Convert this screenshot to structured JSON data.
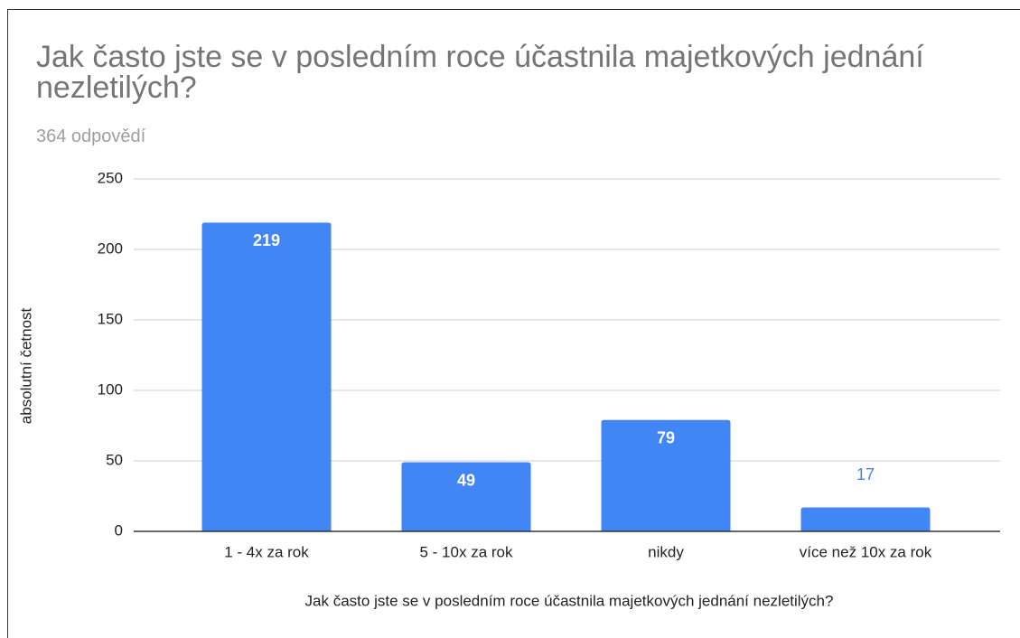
{
  "chart_data": {
    "type": "bar",
    "title": "Jak často jste se v posledním roce účastnila majetkových jednání nezletilých?",
    "subtitle": "364 odpovědí",
    "x_label": "Jak často jste se v posledním roce účastnila majetkových jednání nezletilých?",
    "y_label": "absolutní četnost",
    "categories": [
      "1 - 4x za rok",
      "5 - 10x za rok",
      "nikdy",
      "více než 10x za rok"
    ],
    "values": [
      219,
      49,
      79,
      17
    ],
    "color": "#4285f4",
    "ylim": [
      0,
      250
    ],
    "yticks": [
      0,
      50,
      100,
      150,
      200,
      250
    ],
    "grid": true
  }
}
